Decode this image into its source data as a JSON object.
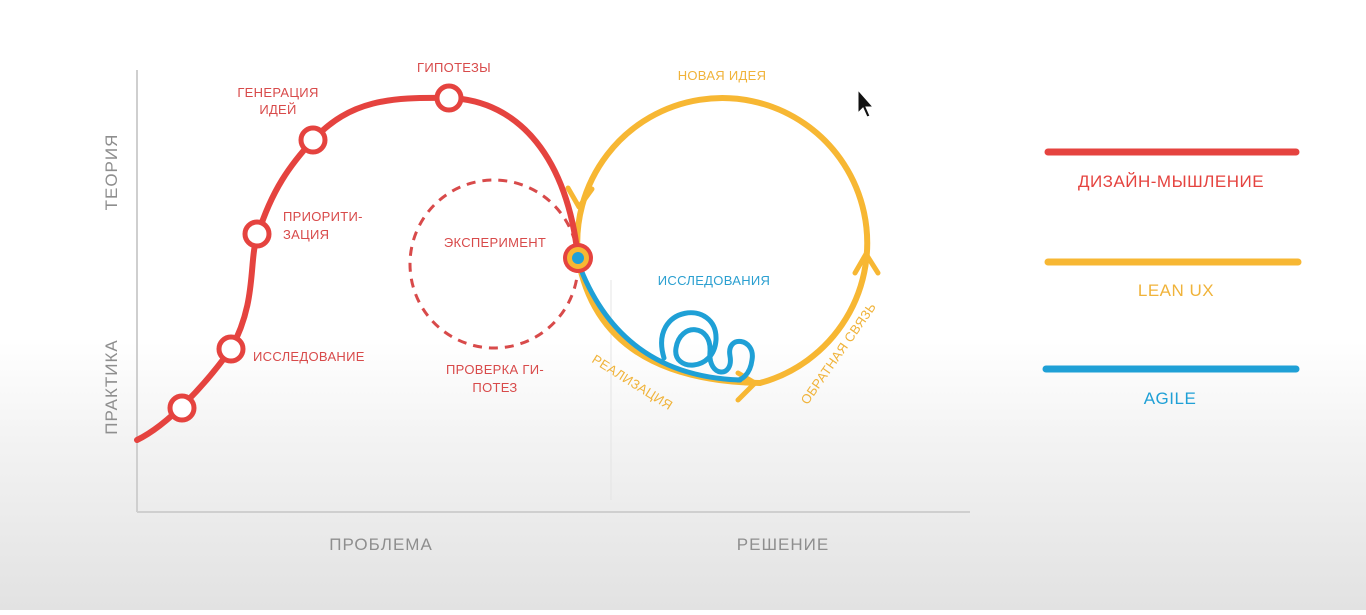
{
  "axes": {
    "y_top": "ТЕОРИЯ",
    "y_bottom": "ПРАКТИКА",
    "x_left": "ПРОБЛЕМА",
    "x_right": "РЕШЕНИЕ"
  },
  "labels": {
    "generation_line1": "ГЕНЕРАЦИЯ",
    "generation_line2": "ИДЕЙ",
    "hypotheses": "ГИПОТЕЗЫ",
    "prioritization_line1": "ПРИОРИТИ-",
    "prioritization_line2": "ЗАЦИЯ",
    "research": "ИССЛЕДОВАНИЕ",
    "experiment": "ЭКСПЕРИМЕНТ",
    "hypothesis_check_line1": "ПРОВЕРКА ГИ-",
    "hypothesis_check_line2": "ПОТЕЗ",
    "new_idea": "НОВАЯ ИДЕЯ",
    "researches": "ИССЛЕДОВАНИЯ",
    "implementation": "РЕАЛИЗАЦИЯ",
    "feedback": "ОБРАТНАЯ СВЯЗЬ"
  },
  "legend": [
    {
      "label": "ДИЗАЙН-МЫШЛЕНИЕ",
      "color": "#e5433f"
    },
    {
      "label": "LEAN UX",
      "color": "#f7b733"
    },
    {
      "label": "AGILE",
      "color": "#1fa0d6"
    }
  ],
  "colors": {
    "design_thinking": "#e5433f",
    "lean_ux": "#f7b733",
    "agile": "#1fa0d6",
    "axis": "#cfcfcf",
    "axis_text": "#8e8e8e"
  },
  "icons": {
    "cursor": "mouse-pointer-icon"
  }
}
